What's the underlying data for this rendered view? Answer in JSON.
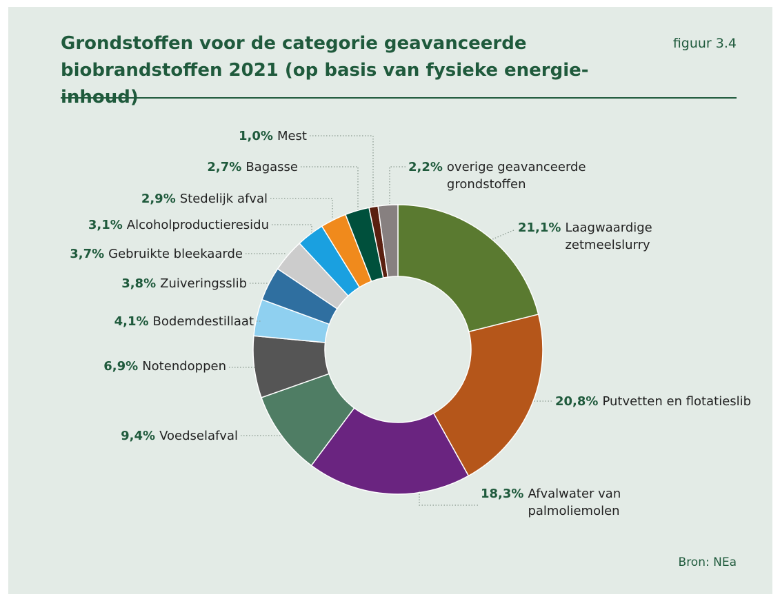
{
  "chart_data": {
    "type": "donut",
    "title": "Grondstoffen voor de categorie geavanceerde biobrandstoffen 2021 (op basis van fysieke energie-inhoud)",
    "figure_label": "figuur 3.4",
    "source": "Bron: NEa",
    "categories": [
      "Laagwaardige zetmeelslurry",
      "Putvetten en flotatieslib",
      "Afvalwater van palmoliemolen",
      "Voedselafval",
      "Notendoppen",
      "Bodemdestillaat",
      "Zuiveringsslib",
      "Gebruikte bleekaarde",
      "Alcoholproductieresidu",
      "Stedelijk afval",
      "Bagasse",
      "Mest",
      "overige geavanceerde grondstoffen"
    ],
    "values": [
      21.1,
      20.8,
      18.3,
      9.4,
      6.9,
      4.1,
      3.8,
      3.7,
      3.1,
      2.9,
      2.7,
      1.0,
      2.2
    ],
    "value_labels": [
      "21,1%",
      "20,8%",
      "18,3%",
      "9,4%",
      "6,9%",
      "4,1%",
      "3,8%",
      "3,7%",
      "3,1%",
      "2,9%",
      "2,7%",
      "1,0%",
      "2,2%"
    ],
    "colors": [
      "#5a7a30",
      "#b5561a",
      "#6a2480",
      "#4f7d64",
      "#555555",
      "#8fd0f0",
      "#2f6fa0",
      "#cccccc",
      "#1aa0e0",
      "#f08a1c",
      "#00503c",
      "#5a2010",
      "#878080"
    ]
  }
}
